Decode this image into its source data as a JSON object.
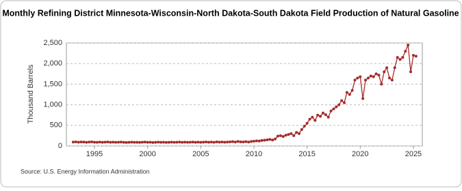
{
  "chart_data": {
    "type": "line",
    "title": "Monthly Refining District Minnesota-Wisconsin-North Dakota-South Dakota Field Production of Natural Gasoline",
    "y_label": "Thousand Barrels",
    "source": "Source: U.S. Energy Information Administration",
    "x": [
      1993,
      1993.25,
      1993.5,
      1993.75,
      1994,
      1994.25,
      1994.5,
      1994.75,
      1995,
      1995.25,
      1995.5,
      1995.75,
      1996,
      1996.25,
      1996.5,
      1996.75,
      1997,
      1997.25,
      1997.5,
      1997.75,
      1998,
      1998.25,
      1998.5,
      1998.75,
      1999,
      1999.25,
      1999.5,
      1999.75,
      2000,
      2000.25,
      2000.5,
      2000.75,
      2001,
      2001.25,
      2001.5,
      2001.75,
      2002,
      2002.25,
      2002.5,
      2002.75,
      2003,
      2003.25,
      2003.5,
      2003.75,
      2004,
      2004.25,
      2004.5,
      2004.75,
      2005,
      2005.25,
      2005.5,
      2005.75,
      2006,
      2006.25,
      2006.5,
      2006.75,
      2007,
      2007.25,
      2007.5,
      2007.75,
      2008,
      2008.25,
      2008.5,
      2008.75,
      2009,
      2009.25,
      2009.5,
      2009.75,
      2010,
      2010.25,
      2010.5,
      2010.75,
      2011,
      2011.25,
      2011.5,
      2011.75,
      2012,
      2012.25,
      2012.5,
      2012.75,
      2013,
      2013.25,
      2013.5,
      2013.75,
      2014,
      2014.25,
      2014.5,
      2014.75,
      2015,
      2015.25,
      2015.5,
      2015.75,
      2016,
      2016.25,
      2016.5,
      2016.75,
      2017,
      2017.25,
      2017.5,
      2017.75,
      2018,
      2018.25,
      2018.5,
      2018.75,
      2019,
      2019.25,
      2019.5,
      2019.75,
      2020,
      2020.25,
      2020.5,
      2020.75,
      2021,
      2021.25,
      2021.5,
      2021.75,
      2022,
      2022.25,
      2022.5,
      2022.75,
      2023,
      2023.25,
      2023.5,
      2023.75,
      2024,
      2024.25,
      2024.5,
      2024.75,
      2025,
      2025.25
    ],
    "series": [
      {
        "color": "#a52a2a",
        "values": [
          95,
          100,
          92,
          98,
          96,
          90,
          95,
          100,
          92,
          88,
          95,
          90,
          93,
          97,
          90,
          94,
          88,
          92,
          96,
          90,
          85,
          90,
          93,
          88,
          90,
          86,
          92,
          95,
          88,
          92,
          85,
          90,
          93,
          88,
          91,
          87,
          90,
          94,
          88,
          92,
          95,
          90,
          93,
          89,
          92,
          96,
          90,
          94,
          88,
          93,
          97,
          91,
          95,
          90,
          100,
          94,
          98,
          92,
          96,
          100,
          105,
          95,
          110,
          100,
          98,
          105,
          95,
          110,
          115,
          125,
          120,
          135,
          140,
          150,
          160,
          145,
          170,
          240,
          250,
          230,
          260,
          280,
          300,
          250,
          330,
          300,
          400,
          480,
          550,
          650,
          700,
          620,
          750,
          720,
          800,
          760,
          700,
          850,
          900,
          950,
          1000,
          1100,
          1050,
          1300,
          1250,
          1350,
          1600,
          1650,
          1680,
          1150,
          1600,
          1650,
          1700,
          1680,
          1750,
          1720,
          1500,
          1800,
          1900,
          1650,
          1600,
          1900,
          2150,
          2100,
          2150,
          2300,
          2450,
          1800,
          2200,
          2180
        ]
      }
    ],
    "xlim": [
      1992.36,
      2025.84
    ],
    "xticks": [
      1995,
      2000,
      2005,
      2010,
      2015,
      2020,
      2025
    ],
    "ylim": [
      0,
      2500
    ],
    "yticks": [
      0,
      500,
      {
        "value": 1000,
        "label": "1,000"
      },
      {
        "value": 1500,
        "label": "1,500"
      },
      {
        "value": 2000,
        "label": "2,000"
      },
      {
        "value": 2500,
        "label": "2,500"
      }
    ],
    "grid": true
  }
}
